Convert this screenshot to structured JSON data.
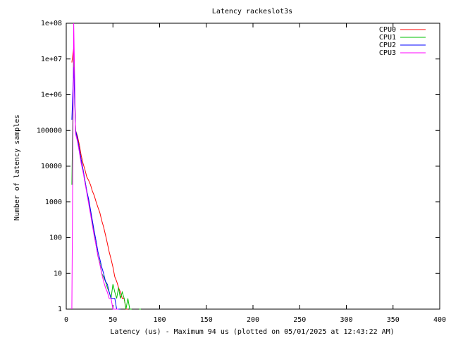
{
  "chart_data": {
    "type": "line",
    "title": "Latency rackeslot3s",
    "xlabel": "Latency (us) - Maximum 94 us (plotted on 05/01/2025 at 12:43:22 AM)",
    "ylabel": "Number of latency samples",
    "log_y": true,
    "grid": false,
    "legend": "top-right",
    "x": [
      6,
      8,
      10,
      12,
      14,
      16,
      18,
      20,
      22,
      24,
      26,
      28,
      30,
      32,
      34,
      36,
      38,
      40,
      42,
      44,
      46,
      48,
      50,
      52,
      54,
      56,
      58,
      60,
      62,
      64,
      66,
      68,
      70,
      72,
      74,
      76,
      78,
      80,
      82,
      84,
      86,
      88,
      90,
      92,
      94
    ],
    "series": [
      {
        "name": "CPU0",
        "color": "#ff0000",
        "values": [
          8000000,
          20000000,
          100000,
          70000,
          40000,
          20000,
          12000,
          8000,
          5000,
          4000,
          3000,
          2000,
          1500,
          1000,
          700,
          500,
          300,
          200,
          120,
          70,
          40,
          25,
          15,
          8,
          6,
          4,
          3,
          2,
          2,
          1,
          1,
          null,
          1,
          null,
          null,
          1,
          null,
          null,
          null,
          null,
          null,
          null,
          1,
          null,
          1
        ]
      },
      {
        "name": "CPU1",
        "color": "#00c000",
        "values": [
          3000,
          17000000,
          90000,
          60000,
          30000,
          15000,
          8000,
          4000,
          2000,
          1000,
          500,
          250,
          120,
          60,
          30,
          20,
          10,
          8,
          6,
          4,
          3,
          2,
          5,
          3,
          2,
          4,
          2,
          3,
          2,
          1,
          2,
          1,
          1,
          null,
          2,
          null,
          1,
          1,
          null,
          null,
          null,
          null,
          null,
          null,
          null
        ]
      },
      {
        "name": "CPU2",
        "color": "#0000ff",
        "values": [
          200000,
          6000000,
          100000,
          60000,
          30000,
          15000,
          8000,
          4000,
          2000,
          1200,
          600,
          300,
          150,
          80,
          40,
          25,
          15,
          10,
          6,
          5,
          3,
          2,
          2,
          2,
          1,
          1,
          1,
          null,
          1,
          null,
          1,
          null,
          null,
          null,
          null,
          null,
          null,
          null,
          null,
          null,
          null,
          null,
          null,
          null,
          null
        ]
      },
      {
        "name": "CPU3",
        "color": "#ff00ff",
        "values": [
          1,
          100000000,
          80000,
          50000,
          25000,
          12000,
          7000,
          3500,
          1800,
          900,
          450,
          220,
          110,
          60,
          30,
          18,
          10,
          6,
          4,
          3,
          2,
          2,
          1,
          1,
          1,
          1,
          null,
          1,
          null,
          null,
          null,
          null,
          null,
          null,
          null,
          null,
          null,
          null,
          null,
          null,
          null,
          null,
          null,
          null,
          null
        ]
      }
    ],
    "xlim": [
      0,
      400
    ],
    "xticks": [
      0,
      50,
      100,
      150,
      200,
      250,
      300,
      350,
      400
    ],
    "ylim": [
      1,
      100000000
    ],
    "yticks": [
      1,
      10,
      100,
      1000,
      10000,
      100000,
      {
        "value": 1000000,
        "label": "1e+06"
      },
      {
        "value": 10000000,
        "label": "1e+07"
      },
      {
        "value": 100000000,
        "label": "1e+08"
      }
    ]
  }
}
